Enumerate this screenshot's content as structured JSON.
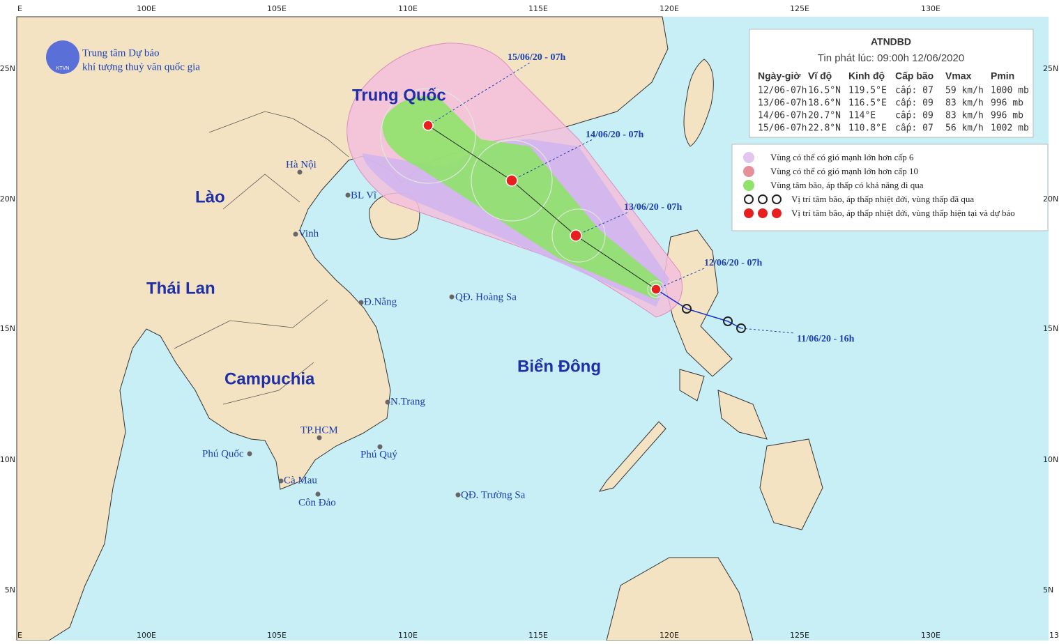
{
  "header": {
    "agency": "Trung tâm Dự báo",
    "agency2": "khí tượng thuỷ văn quốc gia",
    "logo": "KTVN"
  },
  "axes": {
    "lon": [
      "E",
      "100E",
      "105E",
      "110E",
      "115E",
      "120E",
      "125E",
      "130E"
    ],
    "lon_cut": "13",
    "lat": [
      "25N",
      "20N",
      "15N",
      "10N",
      "5N"
    ]
  },
  "countries": [
    "Trung Quốc",
    "Lào",
    "Thái Lan",
    "Campuchia",
    "Biển Đông"
  ],
  "places": [
    "Hà Nội",
    "BL Vĩ",
    "Vinh",
    "Đ.Nẵng",
    "QĐ. Hoàng Sa",
    "N.Trang",
    "TP.HCM",
    "Phú Quốc",
    "Phú Quý",
    "Cà Mau",
    "Côn Đảo",
    "QĐ. Trường Sa"
  ],
  "track_labels": [
    "15/06/20 - 07h",
    "14/06/20 - 07h",
    "13/06/20 - 07h",
    "12/06/20 - 07h",
    "11/06/20 - 16h"
  ],
  "info_table": {
    "title": "ATNDBD",
    "issued": "Tin phát lúc: 09:00h 12/06/2020",
    "columns": [
      "Ngày-giờ",
      "Vĩ độ",
      "Kinh độ",
      "Cấp bão",
      "Vmax",
      "Pmin"
    ],
    "rows": [
      [
        "12/06-07h",
        "16.5°N",
        "119.5°E",
        "cấp: 07",
        "59 km/h",
        "1000 mb"
      ],
      [
        "13/06-07h",
        "18.6°N",
        "116.5°E",
        "cấp: 09",
        "83 km/h",
        "996 mb"
      ],
      [
        "14/06-07h",
        "20.7°N",
        "114°E",
        "cấp: 09",
        "83 km/h",
        "996 mb"
      ],
      [
        "15/06-07h",
        "22.8°N",
        "110.8°E",
        "cấp: 07",
        "56 km/h",
        "1002 mb"
      ]
    ]
  },
  "legend": [
    "Vùng có thể có gió mạnh lớn hơn cấp 6",
    "Vùng có thể có gió mạnh lớn hơn cấp 10",
    "Vùng tâm bão, áp thấp có khả năng đi qua",
    "Vị trí tâm bão, áp thấp nhiệt đới, vùng thấp đã qua",
    "Vị trí tâm bão, áp thấp nhiệt đới, vùng thấp hiện tại và dự báo"
  ]
}
